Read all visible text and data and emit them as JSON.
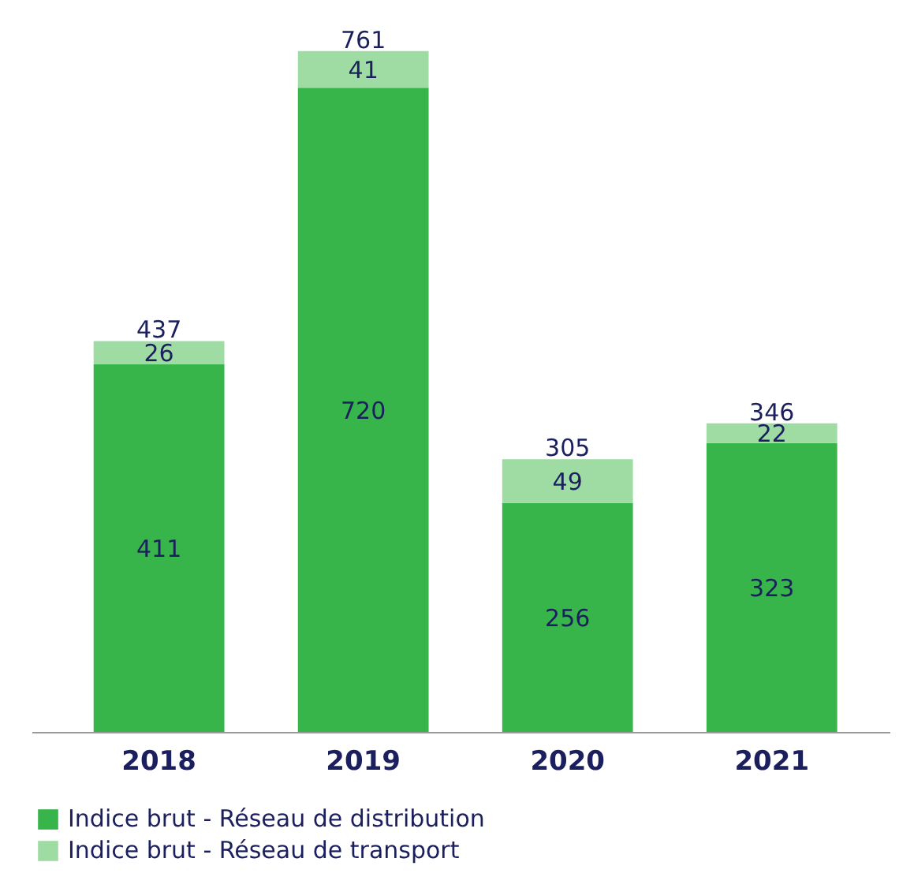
{
  "chart_data": {
    "type": "bar",
    "stacked": true,
    "categories": [
      "2018",
      "2019",
      "2020",
      "2021"
    ],
    "series": [
      {
        "name": "Indice brut - Réseau de distribution",
        "color": "#37b44a",
        "values": [
          411,
          720,
          256,
          323
        ]
      },
      {
        "name": "Indice brut - Réseau de transport",
        "color": "#9edca3",
        "values": [
          26,
          41,
          49,
          22
        ]
      }
    ],
    "data_labels": true,
    "totals": [
      "437",
      "761",
      "305",
      "346"
    ],
    "legend": "bottom"
  }
}
